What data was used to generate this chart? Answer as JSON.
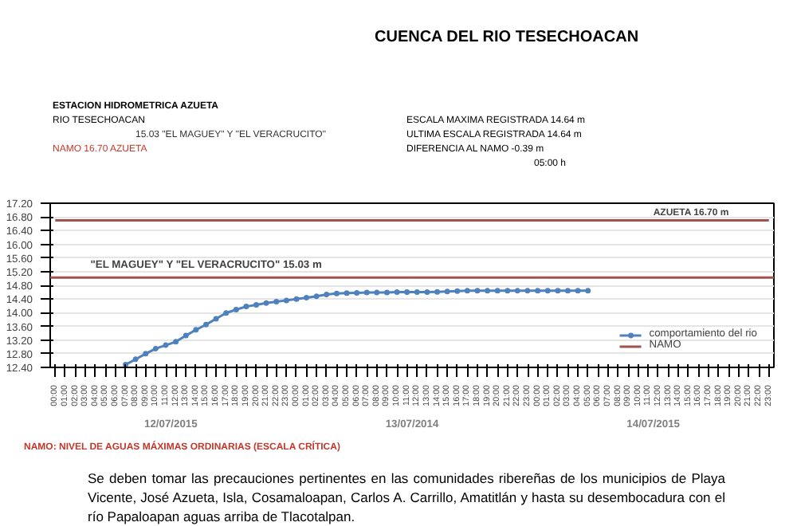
{
  "chart_data": {
    "type": "line",
    "title": "CUENCA DEL RIO TESECHOACAN",
    "categories": [
      "00:00",
      "01:00",
      "02:00",
      "03:00",
      "04:00",
      "05:00",
      "06:00",
      "07:00",
      "08:00",
      "09:00",
      "10:00",
      "11:00",
      "12:00",
      "13:00",
      "14:00",
      "15:00",
      "16:00",
      "17:00",
      "18:00",
      "19:00",
      "20:00",
      "21:00",
      "22:00",
      "23:00",
      "00:00",
      "01:00",
      "02:00",
      "03:00",
      "04:00",
      "05:00",
      "06:00",
      "07:00",
      "08:00",
      "09:00",
      "10:00",
      "11:00",
      "12:00",
      "13:00",
      "14:00",
      "15:00",
      "16:00",
      "17:00",
      "18:00",
      "19:00",
      "20:00",
      "21:00",
      "22:00",
      "23:00",
      "00:00",
      "01:00",
      "02:00",
      "03:00",
      "04:00",
      "05:00",
      "06:00",
      "07:00",
      "08:00",
      "09:00",
      "10:00",
      "11:00",
      "12:00",
      "13:00",
      "14:00",
      "15:00",
      "16:00",
      "17:00",
      "18:00",
      "19:00",
      "20:00",
      "21:00",
      "22:00",
      "23:00"
    ],
    "series": [
      {
        "name": "comportamiento del rio",
        "color": "#4f81bd",
        "marker": "circle",
        "values": [
          null,
          null,
          null,
          null,
          null,
          null,
          null,
          12.48,
          12.64,
          12.8,
          12.95,
          13.05,
          13.15,
          13.33,
          13.5,
          13.65,
          13.82,
          13.99,
          14.09,
          14.18,
          14.23,
          14.28,
          14.32,
          14.36,
          14.4,
          14.44,
          14.48,
          14.53,
          14.56,
          14.57,
          14.58,
          14.59,
          14.59,
          14.59,
          14.6,
          14.6,
          14.6,
          14.6,
          14.61,
          14.62,
          14.63,
          14.64,
          14.64,
          14.64,
          14.64,
          14.64,
          14.64,
          14.64,
          14.64,
          14.64,
          14.64,
          14.64,
          14.64,
          14.64,
          null,
          null,
          null,
          null,
          null,
          null,
          null,
          null,
          null,
          null,
          null,
          null,
          null,
          null,
          null,
          null,
          null,
          null
        ]
      },
      {
        "name": "NAMO",
        "color": "#a0524d",
        "marker": "none",
        "values": [
          16.7,
          16.7,
          16.7,
          16.7,
          16.7,
          16.7,
          16.7,
          16.7,
          16.7,
          16.7,
          16.7,
          16.7,
          16.7,
          16.7,
          16.7,
          16.7,
          16.7,
          16.7,
          16.7,
          16.7,
          16.7,
          16.7,
          16.7,
          16.7,
          16.7,
          16.7,
          16.7,
          16.7,
          16.7,
          16.7,
          16.7,
          16.7,
          16.7,
          16.7,
          16.7,
          16.7,
          16.7,
          16.7,
          16.7,
          16.7,
          16.7,
          16.7,
          16.7,
          16.7,
          16.7,
          16.7,
          16.7,
          16.7,
          16.7,
          16.7,
          16.7,
          16.7,
          16.7,
          16.7,
          16.7,
          16.7,
          16.7,
          16.7,
          16.7,
          16.7,
          16.7,
          16.7,
          16.7,
          16.7,
          16.7,
          16.7,
          16.7,
          16.7,
          16.7,
          16.7,
          16.7,
          16.7
        ]
      }
    ],
    "ref_lines": [
      {
        "axis": "y",
        "value": 15.03,
        "label": "\"EL MAGUEY\" Y \"EL VERACRUCITO\" 15.03 m",
        "color": "#a0524d"
      }
    ],
    "ylim": [
      12.4,
      17.2
    ],
    "yticks": [
      {
        "value": 12.4,
        "label": "12.40"
      },
      {
        "value": 12.8,
        "label": "12.80"
      },
      {
        "value": 13.2,
        "label": "13.20"
      },
      {
        "value": 13.6,
        "label": "13.60"
      },
      {
        "value": 14.0,
        "label": "14.00"
      },
      {
        "value": 14.4,
        "label": "14.40"
      },
      {
        "value": 14.8,
        "label": "14.80"
      },
      {
        "value": 15.2,
        "label": "15.20"
      },
      {
        "value": 15.6,
        "label": "15.60"
      },
      {
        "value": 16.0,
        "label": "16.00"
      },
      {
        "value": 16.4,
        "label": "16.40"
      },
      {
        "value": 16.8,
        "label": "16.80"
      },
      {
        "value": 17.2,
        "label": "17.20"
      }
    ],
    "grid": "y",
    "legend": "bottom right",
    "annotations": [
      "12/07/2015",
      "13/07/2014",
      "14/07/2015",
      {
        "text": "AZUETA 16.70 m",
        "y": 16.7
      },
      "ESTACION HIDROMETRICA AZUETA",
      "RIO TESECHOACAN",
      "15.03 \"EL MAGUEY\" Y \"EL VERACRUCITO\"",
      "NAMO 16.70 AZUETA",
      "ESCALA MAXIMA REGISTRADA 14.64 m",
      "ULTIMA ESCALA REGISTRADA 14.64 m",
      "DIFERENCIA AL NAMO -0.39 m",
      "05:00 h",
      "NAMO: NIVEL DE AGUAS MÁXIMAS ORDINARIAS (ESCALA CRÍTICA)",
      "Se deben tomar las precauciones pertinentes en las comunidades ribereñas de los municipios de Playa Vicente, José Azueta, Isla, Cosamaloapan, Carlos A. Carrillo, Amatitlán y hasta su desembocadura con el río Papaloapan aguas arriba de Tlacotalpan."
    ]
  }
}
